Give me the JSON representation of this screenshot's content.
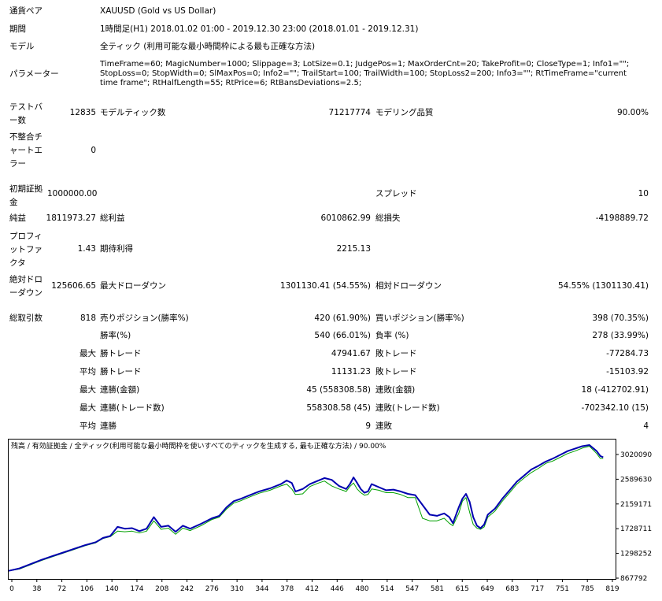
{
  "header": {
    "symbol_label": "通貨ペア",
    "symbol": "XAUUSD (Gold vs US Dollar)",
    "period_label": "期間",
    "period": "1時間足(H1) 2018.01.02 01:00 - 2019.12.30 23:00 (2018.01.01 - 2019.12.31)",
    "model_label": "モデル",
    "model": "全ティック (利用可能な最小時間枠による最も正確な方法)",
    "params_label": "パラメーター",
    "params": "TimeFrame=60; MagicNumber=1000; Slippage=3; LotSize=0.1; JudgePos=1; MaxOrderCnt=20; TakeProfit=0; CloseType=1; Info1=\"\"; StopLoss=0; StopWidth=0; SlMaxPos=0; Info2=\"\"; TrailStart=100; TrailWidth=100; StopLoss2=200; Info3=\"\"; RtTimeFrame=\"current time frame\"; RtHalfLength=55; RtPrice=6; RtBansDeviations=2.5;"
  },
  "stats": {
    "bars_label": "テストバー数",
    "bars": "12835",
    "ticks_label": "モデルティック数",
    "ticks": "71217774",
    "quality_label": "モデリング品質",
    "quality": "90.00%",
    "mismatch_label": "不整合チャートエラー",
    "mismatch": "0",
    "deposit_label": "初期証拠金",
    "deposit": "1000000.00",
    "spread_label": "スプレッド",
    "spread": "10",
    "net_label": "純益",
    "net": "1811973.27",
    "gross_profit_label": "総利益",
    "gross_profit": "6010862.99",
    "gross_loss_label": "総損失",
    "gross_loss": "-4198889.72",
    "pf_label": "プロフィットファクタ",
    "pf": "1.43",
    "expected_label": "期待利得",
    "expected": "2215.13",
    "abs_dd_label": "絶対ドローダウン",
    "abs_dd": "125606.65",
    "max_dd_label": "最大ドローダウン",
    "max_dd": "1301130.41 (54.55%)",
    "rel_dd_label": "相対ドローダウン",
    "rel_dd": "54.55% (1301130.41)",
    "total_label": "総取引数",
    "total": "818",
    "short_label": "売りポジション(勝率%)",
    "short": "420 (61.90%)",
    "long_label": "買いポジション(勝率%)",
    "long": "398 (70.35%)",
    "win_pct_label": "勝率(%)",
    "win_pct": "540 (66.01%)",
    "loss_pct_label": "負率 (%)",
    "loss_pct": "278 (33.99%)",
    "max_word": "最大",
    "avg_word": "平均",
    "best_label": "勝トレード",
    "best": "47941.67",
    "worst_label": "敗トレード",
    "worst": "-77284.73",
    "avg_win_label": "勝トレード",
    "avg_win": "11131.23",
    "avg_loss_label": "敗トレード",
    "avg_loss": "-15103.92",
    "cons_win_amt_label": "連勝(金額)",
    "cons_win_amt": "45 (558308.58)",
    "cons_loss_amt_label": "連敗(金額)",
    "cons_loss_amt": "18 (-412702.91)",
    "cons_win_cnt_label": "連勝(トレード数)",
    "cons_win_cnt": "558308.58 (45)",
    "cons_loss_cnt_label": "連敗(トレード数)",
    "cons_loss_cnt": "-702342.10 (15)",
    "avg_cons_win_label": "連勝",
    "avg_cons_win": "9",
    "avg_cons_loss_label": "連敗",
    "avg_cons_loss": "4"
  },
  "chart_legend": {
    "balance": "残高",
    "sep1": " / ",
    "equity": "有効証拠金",
    "sep2": " / ",
    "model": "全ティック(利用可能な最小時間枠を使いすべてのティックを生成する, 最も正確な方法)",
    "sep3": " / ",
    "quality": "90.00%"
  },
  "chart_data": {
    "type": "line",
    "x_ticks": [
      "0",
      "38",
      "72",
      "106",
      "140",
      "174",
      "208",
      "242",
      "276",
      "310",
      "344",
      "378",
      "412",
      "446",
      "480",
      "514",
      "547",
      "581",
      "615",
      "649",
      "683",
      "717",
      "751",
      "785",
      "819"
    ],
    "y_ticks": [
      "3020090",
      "2589630",
      "2159171",
      "1728711",
      "1298252",
      "867792"
    ],
    "ylim": [
      867792,
      3150000
    ],
    "xlim": [
      0,
      836
    ],
    "series": [
      {
        "name": "残高",
        "color": "#0000b0",
        "x": [
          0,
          15,
          30,
          45,
          60,
          75,
          90,
          105,
          120,
          130,
          140,
          150,
          160,
          170,
          180,
          190,
          200,
          210,
          220,
          230,
          240,
          250,
          265,
          280,
          290,
          300,
          310,
          320,
          330,
          345,
          360,
          375,
          383,
          390,
          395,
          405,
          415,
          425,
          435,
          445,
          455,
          465,
          470,
          475,
          480,
          485,
          490,
          495,
          500,
          510,
          520,
          530,
          540,
          550,
          560,
          570,
          580,
          590,
          600,
          607,
          612,
          620,
          625,
          630,
          635,
          640,
          645,
          650,
          655,
          660,
          670,
          680,
          690,
          700,
          710,
          720,
          730,
          740,
          750,
          760,
          770,
          780,
          790,
          800,
          810,
          815,
          819
        ],
        "y": [
          1000000,
          1040000,
          1110000,
          1180000,
          1240000,
          1300000,
          1360000,
          1420000,
          1470000,
          1540000,
          1570000,
          1720000,
          1690000,
          1700000,
          1650000,
          1690000,
          1880000,
          1720000,
          1740000,
          1640000,
          1740000,
          1690000,
          1770000,
          1860000,
          1900000,
          2040000,
          2140000,
          2180000,
          2230000,
          2300000,
          2350000,
          2420000,
          2480000,
          2440000,
          2300000,
          2340000,
          2420000,
          2470000,
          2520000,
          2490000,
          2390000,
          2340000,
          2420000,
          2530000,
          2440000,
          2340000,
          2280000,
          2300000,
          2420000,
          2370000,
          2320000,
          2330000,
          2300000,
          2260000,
          2240000,
          2080000,
          1920000,
          1900000,
          1940000,
          1880000,
          1780000,
          2040000,
          2180000,
          2260000,
          2130000,
          1880000,
          1740000,
          1700000,
          1760000,
          1920000,
          2020000,
          2180000,
          2320000,
          2460000,
          2560000,
          2660000,
          2720000,
          2790000,
          2840000,
          2900000,
          2960000,
          3000000,
          3040000,
          3060000,
          2960000,
          2880000,
          2860000
        ]
      },
      {
        "name": "有効証拠金",
        "color": "#00a000",
        "x": [
          0,
          15,
          30,
          45,
          60,
          75,
          90,
          105,
          120,
          130,
          140,
          150,
          160,
          170,
          180,
          190,
          200,
          210,
          220,
          230,
          240,
          250,
          265,
          280,
          290,
          300,
          310,
          320,
          330,
          345,
          360,
          375,
          383,
          390,
          395,
          405,
          415,
          425,
          435,
          445,
          455,
          465,
          470,
          475,
          480,
          485,
          490,
          495,
          500,
          510,
          520,
          530,
          540,
          550,
          560,
          570,
          580,
          590,
          600,
          607,
          612,
          620,
          625,
          630,
          635,
          640,
          645,
          650,
          655,
          660,
          670,
          680,
          690,
          700,
          710,
          720,
          730,
          740,
          750,
          760,
          770,
          780,
          790,
          800,
          810,
          815,
          819
        ],
        "y": [
          1000000,
          1030000,
          1100000,
          1170000,
          1230000,
          1290000,
          1350000,
          1410000,
          1460000,
          1530000,
          1560000,
          1650000,
          1640000,
          1650000,
          1620000,
          1650000,
          1820000,
          1680000,
          1700000,
          1600000,
          1700000,
          1660000,
          1740000,
          1840000,
          1880000,
          2010000,
          2110000,
          2150000,
          2200000,
          2270000,
          2320000,
          2390000,
          2420000,
          2340000,
          2250000,
          2260000,
          2380000,
          2430000,
          2470000,
          2390000,
          2340000,
          2300000,
          2380000,
          2440000,
          2340000,
          2280000,
          2240000,
          2250000,
          2340000,
          2320000,
          2280000,
          2280000,
          2250000,
          2200000,
          2200000,
          1860000,
          1820000,
          1820000,
          1860000,
          1780000,
          1740000,
          1940000,
          2140000,
          2200000,
          1960000,
          1760000,
          1700000,
          1680000,
          1720000,
          1880000,
          1980000,
          2140000,
          2280000,
          2420000,
          2520000,
          2610000,
          2680000,
          2760000,
          2800000,
          2860000,
          2920000,
          2960000,
          3010000,
          3040000,
          2920000,
          2840000,
          2840000
        ]
      }
    ]
  }
}
